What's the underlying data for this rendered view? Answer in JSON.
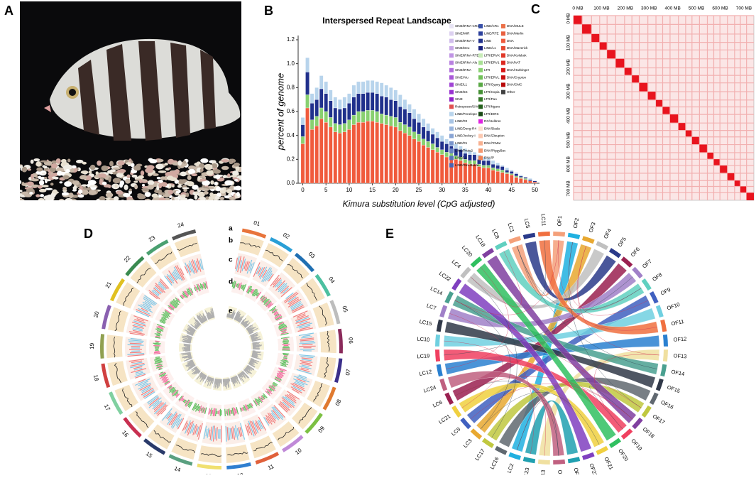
{
  "panel_labels": [
    "A",
    "B",
    "C",
    "D",
    "E"
  ],
  "chart_data": {
    "type": "stacked_bar",
    "title": "Interspersed Repeat Landscape",
    "xlabel": "Kimura substitution level (CpG adjusted)",
    "ylabel": "percent of genome",
    "x": [
      0,
      1,
      2,
      3,
      4,
      5,
      6,
      7,
      8,
      9,
      10,
      11,
      12,
      13,
      14,
      15,
      16,
      17,
      18,
      19,
      20,
      21,
      22,
      23,
      24,
      25,
      26,
      27,
      28,
      29,
      30,
      31,
      32,
      33,
      34,
      35,
      36,
      37,
      38,
      39,
      40,
      41,
      42,
      43,
      44,
      45,
      46,
      47,
      48,
      49,
      50
    ],
    "series": [
      {
        "name": "DNA",
        "color": "#f05a3c",
        "values": [
          0.33,
          0.63,
          0.45,
          0.48,
          0.54,
          0.51,
          0.47,
          0.43,
          0.42,
          0.43,
          0.45,
          0.49,
          0.51,
          0.51,
          0.52,
          0.52,
          0.51,
          0.5,
          0.49,
          0.48,
          0.47,
          0.44,
          0.42,
          0.4,
          0.37,
          0.35,
          0.32,
          0.3,
          0.28,
          0.26,
          0.24,
          0.22,
          0.21,
          0.2,
          0.19,
          0.17,
          0.16,
          0.16,
          0.14,
          0.13,
          0.13,
          0.11,
          0.1,
          0.09,
          0.08,
          0.07,
          0.05,
          0.04,
          0.03,
          0.02,
          0.01
        ]
      },
      {
        "name": "LTR",
        "color": "#88d070",
        "values": [
          0.06,
          0.11,
          0.08,
          0.08,
          0.09,
          0.09,
          0.08,
          0.07,
          0.07,
          0.07,
          0.08,
          0.08,
          0.09,
          0.09,
          0.09,
          0.09,
          0.09,
          0.08,
          0.08,
          0.08,
          0.08,
          0.07,
          0.07,
          0.07,
          0.06,
          0.06,
          0.05,
          0.05,
          0.05,
          0.04,
          0.04,
          0.04,
          0.04,
          0.03,
          0.03,
          0.03,
          0.03,
          0.03,
          0.02,
          0.02,
          0.02,
          0.02,
          0.02,
          0.02,
          0.01,
          0.01,
          0.01,
          0.01,
          0.01,
          0,
          0
        ]
      },
      {
        "name": "LINE",
        "color": "#20308c",
        "values": [
          0.1,
          0.19,
          0.14,
          0.14,
          0.16,
          0.15,
          0.14,
          0.13,
          0.13,
          0.13,
          0.14,
          0.15,
          0.15,
          0.15,
          0.15,
          0.15,
          0.15,
          0.15,
          0.15,
          0.14,
          0.14,
          0.13,
          0.13,
          0.12,
          0.11,
          0.1,
          0.1,
          0.09,
          0.08,
          0.08,
          0.07,
          0.07,
          0.06,
          0.06,
          0.06,
          0.05,
          0.05,
          0.05,
          0.04,
          0.04,
          0.04,
          0.03,
          0.03,
          0.03,
          0.02,
          0.02,
          0.02,
          0.01,
          0.01,
          0.01,
          0.01
        ]
      },
      {
        "name": "LINE/Penelope",
        "color": "#b8d4ec",
        "values": [
          0.06,
          0.12,
          0.08,
          0.1,
          0.11,
          0.1,
          0.09,
          0.09,
          0.08,
          0.09,
          0.08,
          0.1,
          0.1,
          0.1,
          0.1,
          0.1,
          0.1,
          0.11,
          0.1,
          0.1,
          0.09,
          0.1,
          0.08,
          0.07,
          0.08,
          0.07,
          0.07,
          0.06,
          0.05,
          0.05,
          0.05,
          0.04,
          0.04,
          0.04,
          0.03,
          0.04,
          0.03,
          0.02,
          0.04,
          0.03,
          0.02,
          0.03,
          0.02,
          0.01,
          0.02,
          0.01,
          0.01,
          0.01,
          0,
          0.01,
          0
        ]
      }
    ],
    "xlim": [
      -1,
      51
    ],
    "ylim": [
      0,
      1.2
    ],
    "xticks": [
      0,
      5,
      10,
      15,
      20,
      25,
      30,
      35,
      40,
      45,
      50
    ],
    "yticks": [
      {
        "value": 0,
        "label": "0.0"
      },
      0.2,
      0.4,
      0.6,
      0.8,
      {
        "value": 1,
        "label": "1.0"
      },
      1.2
    ],
    "legend": [
      [
        {
          "name": "SINE/tRNA-CR1",
          "color": "#e8e4f4"
        },
        {
          "name": "SINE/MIR",
          "color": "#dcd0f0"
        },
        {
          "name": "SINE/tRNA-V",
          "color": "#d0bcec"
        },
        {
          "name": "SINE/Deu",
          "color": "#c8a8e8"
        },
        {
          "name": "SINE/tRNA-RTE",
          "color": "#c094e4"
        },
        {
          "name": "SINE/tRNA-Alu",
          "color": "#b880e0"
        },
        {
          "name": "SINE/tRNA",
          "color": "#b06cdc"
        },
        {
          "name": "SINE/Alu",
          "color": "#a858d8"
        },
        {
          "name": "SINE/L1",
          "color": "#a044d4"
        },
        {
          "name": "SINE/5S",
          "color": "#9830d0"
        },
        {
          "name": "SINE",
          "color": "#9020c8"
        },
        {
          "name": "Retroposon/SVA",
          "color": "#e05050"
        },
        {
          "name": "LINE/Penelope",
          "color": "#b8d4ec"
        },
        {
          "name": "LINE/R2",
          "color": "#a8c4e4"
        },
        {
          "name": "LINE/Dong-R4",
          "color": "#98b4dc"
        },
        {
          "name": "LINE/Jockey-I",
          "color": "#88a4d4"
        },
        {
          "name": "LINE/R1",
          "color": "#7894cc"
        },
        {
          "name": "LINE/Proto2",
          "color": "#6884c4"
        },
        {
          "name": "LINE/L2",
          "color": "#5874bc"
        },
        {
          "name": "LINE/Rex-Babar",
          "color": "#4864b4"
        }
      ],
      [
        {
          "name": "LINE/CR1",
          "color": "#3850a8"
        },
        {
          "name": "LINE/RTE",
          "color": "#2c409c"
        },
        {
          "name": "LINE",
          "color": "#20308c"
        },
        {
          "name": "LINE/L1",
          "color": "#18207c"
        },
        {
          "name": "LTR/ERVK",
          "color": "#c8ecb8"
        },
        {
          "name": "LTR/ERV1",
          "color": "#a8e094"
        },
        {
          "name": "LTR",
          "color": "#88d070"
        },
        {
          "name": "LTR/ERVL",
          "color": "#70c058"
        },
        {
          "name": "LTR/Gypsy",
          "color": "#58a844"
        },
        {
          "name": "LTR/Copia",
          "color": "#449034"
        },
        {
          "name": "LTR/Pao",
          "color": "#347828"
        },
        {
          "name": "LTR/Ngaro",
          "color": "#24601c"
        },
        {
          "name": "LTR/DIRS",
          "color": "#184814"
        },
        {
          "name": "RC/Helitron",
          "color": "#e020e0"
        },
        {
          "name": "DNA/Dada",
          "color": "#fde0d0"
        },
        {
          "name": "DNA/Zisupton",
          "color": "#fcc8b0"
        },
        {
          "name": "DNA/TcMar",
          "color": "#f8b090"
        },
        {
          "name": "DNA/PiggyBac",
          "color": "#f49870"
        },
        {
          "name": "DNA/P",
          "color": "#f08050"
        }
      ],
      [
        {
          "name": "DNA/MULE",
          "color": "#ec7048"
        },
        {
          "name": "DNA/Merlin",
          "color": "#e86040"
        },
        {
          "name": "DNA",
          "color": "#f05a3c"
        },
        {
          "name": "DNA/Maverick",
          "color": "#e44830"
        },
        {
          "name": "DNA/Kolobok",
          "color": "#e03828"
        },
        {
          "name": "DNA/hAT",
          "color": "#dc2820"
        },
        {
          "name": "DNA/Harbinger",
          "color": "#d81818"
        },
        {
          "name": "DNA/Crypton",
          "color": "#c81010"
        },
        {
          "name": "DNA/CMC",
          "color": "#b80808"
        },
        {
          "name": "Other",
          "color": "#404040"
        }
      ]
    ]
  },
  "hic": {
    "lim": [
      0,
      760
    ],
    "ticks": [
      {
        "value": 0,
        "label": "0 MB"
      },
      {
        "value": 100,
        "label": "100 MB"
      },
      {
        "value": 200,
        "label": "200 MB"
      },
      {
        "value": 300,
        "label": "300 MB"
      },
      {
        "value": 400,
        "label": "400 MB"
      },
      {
        "value": 500,
        "label": "500 MB"
      },
      {
        "value": 600,
        "label": "600 MB"
      },
      {
        "value": 700,
        "label": "700 MB"
      }
    ]
  },
  "circos_d": {
    "chromosomes": [
      "01",
      "02",
      "03",
      "04",
      "05",
      "06",
      "07",
      "08",
      "09",
      "10",
      "11",
      "12",
      "13",
      "14",
      "15",
      "16",
      "17",
      "18",
      "19",
      "20",
      "21",
      "22",
      "23",
      "24"
    ],
    "colors": [
      "#e8743b",
      "#2a9fd6",
      "#1f6fb2",
      "#4cc0a0",
      "#bdbdbd",
      "#8a2a5a",
      "#3b2f8a",
      "#e07a30",
      "#7cc043",
      "#c08ad8",
      "#e0603a",
      "#2f7fd0",
      "#f0e070",
      "#5aa080",
      "#2a3a6a",
      "#c83050",
      "#80d0a0",
      "#d04040",
      "#90a050",
      "#8a60b0",
      "#e0c020",
      "#3a8a50",
      "#4aa070",
      "#555555"
    ],
    "tracks": [
      "a",
      "b",
      "c",
      "d",
      "e"
    ]
  },
  "circos_e": {
    "labels": [
      "LC1",
      "LC5",
      "LC11",
      "OF1",
      "OF2",
      "OF3",
      "OF4",
      "OF5",
      "OF6",
      "OF7",
      "OF8",
      "OF9",
      "OF10",
      "OF11",
      "OF12",
      "OF13",
      "OF14",
      "OF15",
      "OF16",
      "OF17",
      "OF18",
      "OF19",
      "OF20",
      "OF21",
      "OF22",
      "OF23",
      "OF24",
      "LC13",
      "LC23",
      "LC2",
      "LC16",
      "LC17",
      "LC3",
      "LC9",
      "LC21",
      "LC6",
      "LC24",
      "LC12",
      "LC19",
      "LC10",
      "LC15",
      "LC7",
      "LC14",
      "LC22",
      "LC4",
      "LC20",
      "LC18",
      "LC8"
    ],
    "colors": [
      "#f4a07a",
      "#20b0e0",
      "#e8a830",
      "#c0c0c0",
      "#2a3a8a",
      "#9a2050",
      "#a080c8",
      "#60d0c0",
      "#4060c0",
      "#70d0e0",
      "#f07040",
      "#2a80d0",
      "#f0e0a0",
      "#4aa090",
      "#303848",
      "#606870",
      "#c0c840",
      "#8040a0",
      "#f04060",
      "#30c060",
      "#f0d040",
      "#8040c0",
      "#20a0b0",
      "#c06080"
    ]
  }
}
